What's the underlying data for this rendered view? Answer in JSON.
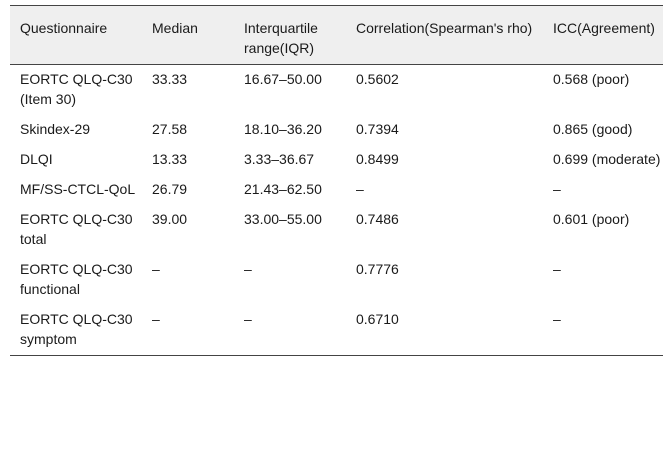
{
  "table": {
    "headers": [
      "Questionnaire",
      "Median",
      "Interquartile range(IQR)",
      "Correlation(Spearman's rho)",
      "ICC(Agreement)"
    ],
    "rows": [
      [
        "EORTC QLQ-C30 (Item 30)",
        "33.33",
        "16.67–50.00",
        "0.5602",
        "0.568 (poor)"
      ],
      [
        "Skindex-29",
        "27.58",
        "18.10–36.20",
        "0.7394",
        "0.865 (good)"
      ],
      [
        "DLQI",
        "13.33",
        "3.33–36.67",
        "0.8499",
        "0.699 (moderate)"
      ],
      [
        "MF/SS-CTCL-QoL",
        "26.79",
        "21.43–62.50",
        "–",
        "–"
      ],
      [
        "EORTC QLQ-C30 total",
        "39.00",
        "33.00–55.00",
        "0.7486",
        "0.601 (poor)"
      ],
      [
        "EORTC QLQ-C30 functional",
        "–",
        "–",
        "0.7776",
        "–"
      ],
      [
        "EORTC QLQ-C30 symptom",
        "–",
        "–",
        "0.6710",
        "–"
      ]
    ]
  }
}
